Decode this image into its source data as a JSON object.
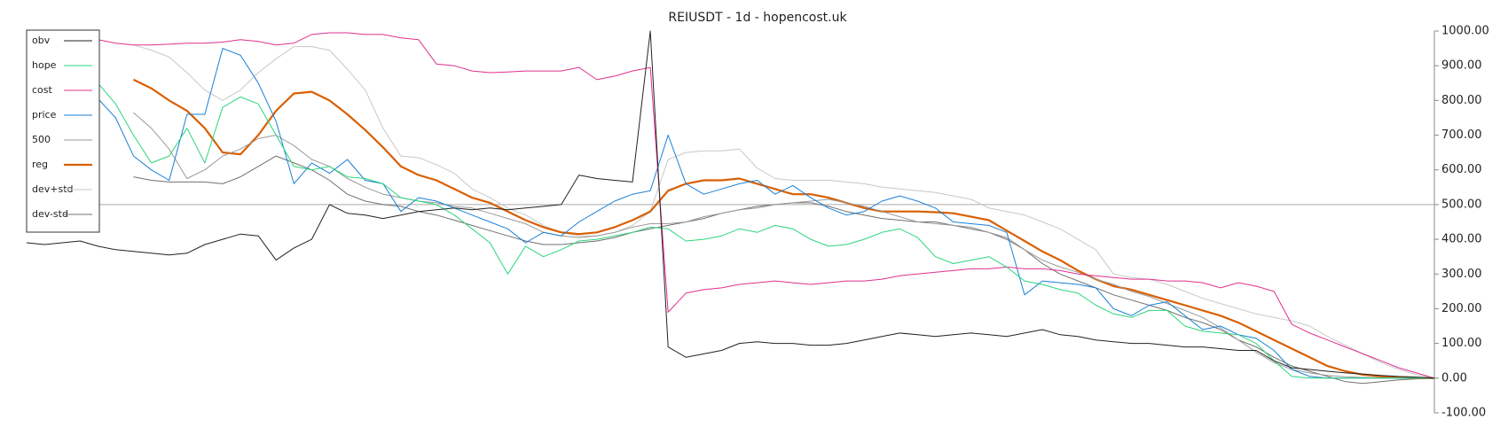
{
  "chart_data": {
    "type": "line",
    "title": "REIUSDT - 1d - hopencost.uk",
    "ylim": [
      -100,
      1000
    ],
    "yticks": [
      {
        "value": 1000,
        "label": "1000.00"
      },
      {
        "value": 900,
        "label": "900.00"
      },
      {
        "value": 800,
        "label": "800.00"
      },
      {
        "value": 700,
        "label": "700.00"
      },
      {
        "value": 600,
        "label": "600.00"
      },
      {
        "value": 500,
        "label": "500.00"
      },
      {
        "value": 400,
        "label": "400.00"
      },
      {
        "value": 300,
        "label": "300.00"
      },
      {
        "value": 200,
        "label": "200.00"
      },
      {
        "value": 100,
        "label": "100.00"
      },
      {
        "value": 0,
        "label": "0.00"
      },
      {
        "value": -100,
        "label": "-100.00"
      }
    ],
    "y_axis_side": "right",
    "reference_line": 500,
    "legend": "upper left",
    "series": [
      {
        "name": "obv",
        "color": "#222222",
        "width": 1,
        "values": [
          390,
          385,
          390,
          395,
          380,
          370,
          365,
          360,
          355,
          360,
          385,
          400,
          415,
          410,
          340,
          375,
          400,
          500,
          475,
          470,
          460,
          470,
          480,
          485,
          490,
          485,
          490,
          485,
          490,
          495,
          500,
          585,
          575,
          570,
          565,
          1000,
          90,
          60,
          70,
          80,
          100,
          105,
          100,
          100,
          95,
          95,
          100,
          110,
          120,
          130,
          125,
          120,
          125,
          130,
          125,
          120,
          130,
          140,
          125,
          120,
          110,
          105,
          100,
          100,
          95,
          90,
          90,
          85,
          80,
          80,
          50,
          30,
          25,
          20,
          15,
          12,
          8,
          5,
          3,
          0
        ]
      },
      {
        "name": "hope",
        "color": "#2bd67b",
        "width": 1,
        "values": [
          null,
          null,
          null,
          null,
          850,
          790,
          700,
          620,
          640,
          720,
          620,
          780,
          810,
          790,
          700,
          610,
          600,
          610,
          580,
          575,
          560,
          520,
          510,
          500,
          470,
          430,
          390,
          300,
          380,
          350,
          370,
          395,
          400,
          410,
          420,
          435,
          430,
          395,
          400,
          410,
          430,
          420,
          440,
          430,
          400,
          380,
          385,
          400,
          420,
          430,
          405,
          350,
          330,
          340,
          350,
          320,
          280,
          270,
          255,
          245,
          210,
          185,
          175,
          195,
          195,
          150,
          135,
          130,
          125,
          100,
          50,
          5,
          0,
          0,
          0,
          0,
          0,
          0,
          0,
          0
        ]
      },
      {
        "name": "cost",
        "color": "#e0308f",
        "width": 1,
        "values": [
          null,
          null,
          null,
          null,
          975,
          965,
          960,
          960,
          962,
          965,
          965,
          968,
          975,
          970,
          960,
          965,
          990,
          995,
          995,
          990,
          990,
          980,
          975,
          905,
          900,
          885,
          880,
          882,
          885,
          885,
          885,
          895,
          860,
          870,
          885,
          895,
          190,
          245,
          255,
          260,
          270,
          275,
          280,
          275,
          270,
          275,
          280,
          280,
          285,
          295,
          300,
          305,
          310,
          315,
          315,
          320,
          315,
          315,
          310,
          300,
          295,
          290,
          285,
          285,
          280,
          280,
          275,
          260,
          275,
          265,
          250,
          155,
          130,
          110,
          90,
          70,
          50,
          30,
          15,
          0
        ]
      },
      {
        "name": "price",
        "color": "#1a7fd6",
        "width": 1,
        "values": [
          null,
          null,
          null,
          null,
          805,
          750,
          640,
          600,
          570,
          760,
          760,
          950,
          930,
          850,
          740,
          560,
          620,
          590,
          630,
          570,
          560,
          480,
          520,
          510,
          490,
          470,
          450,
          430,
          390,
          420,
          410,
          450,
          480,
          510,
          530,
          540,
          700,
          560,
          530,
          545,
          560,
          570,
          530,
          555,
          520,
          490,
          470,
          480,
          510,
          525,
          510,
          490,
          450,
          445,
          440,
          420,
          240,
          280,
          275,
          270,
          260,
          200,
          180,
          210,
          220,
          180,
          140,
          150,
          125,
          115,
          80,
          25,
          5,
          0,
          0,
          0,
          0,
          0,
          0,
          0
        ]
      },
      {
        "name": "500",
        "color": "#9a9a9a",
        "width": 1,
        "values": [
          null,
          null,
          null,
          null,
          null,
          null,
          765,
          720,
          660,
          575,
          600,
          640,
          660,
          690,
          700,
          670,
          630,
          610,
          575,
          550,
          530,
          520,
          510,
          505,
          495,
          490,
          475,
          460,
          445,
          420,
          410,
          405,
          410,
          420,
          435,
          445,
          445,
          450,
          465,
          475,
          485,
          490,
          500,
          505,
          510,
          515,
          505,
          495,
          480,
          465,
          450,
          445,
          440,
          435,
          420,
          405,
          370,
          340,
          320,
          305,
          285,
          270,
          250,
          235,
          215,
          195,
          175,
          145,
          110,
          75,
          45,
          25,
          15,
          8,
          4,
          2,
          1,
          0,
          0,
          0
        ]
      },
      {
        "name": "reg",
        "color": "#d95f02",
        "width": 2.2,
        "values": [
          null,
          null,
          null,
          null,
          null,
          null,
          860,
          835,
          800,
          770,
          720,
          650,
          645,
          700,
          770,
          820,
          825,
          800,
          760,
          715,
          665,
          610,
          585,
          570,
          545,
          520,
          505,
          480,
          455,
          435,
          420,
          415,
          420,
          435,
          455,
          480,
          540,
          560,
          570,
          570,
          575,
          560,
          545,
          530,
          530,
          520,
          505,
          490,
          480,
          480,
          480,
          478,
          475,
          465,
          455,
          425,
          395,
          365,
          340,
          310,
          285,
          265,
          255,
          240,
          225,
          210,
          195,
          180,
          160,
          135,
          110,
          85,
          60,
          35,
          20,
          10,
          5,
          2,
          0,
          0
        ]
      },
      {
        "name": "dev+std",
        "color": "#c8c8c8",
        "width": 1,
        "values": [
          null,
          null,
          null,
          null,
          null,
          null,
          960,
          945,
          925,
          880,
          830,
          800,
          830,
          880,
          920,
          955,
          955,
          945,
          890,
          830,
          720,
          640,
          635,
          615,
          590,
          545,
          520,
          490,
          470,
          440,
          420,
          410,
          410,
          420,
          440,
          480,
          630,
          650,
          655,
          655,
          660,
          605,
          575,
          570,
          570,
          570,
          565,
          560,
          550,
          545,
          540,
          535,
          525,
          515,
          490,
          480,
          470,
          450,
          430,
          400,
          370,
          300,
          290,
          285,
          270,
          250,
          230,
          215,
          200,
          185,
          175,
          165,
          150,
          120,
          95,
          70,
          45,
          25,
          10,
          0
        ]
      },
      {
        "name": "dev-std",
        "color": "#707070",
        "width": 1,
        "values": [
          null,
          null,
          null,
          null,
          null,
          null,
          580,
          570,
          565,
          565,
          565,
          560,
          580,
          610,
          640,
          620,
          600,
          570,
          530,
          510,
          500,
          495,
          480,
          470,
          455,
          440,
          425,
          410,
          395,
          385,
          385,
          390,
          395,
          405,
          420,
          430,
          440,
          450,
          460,
          475,
          485,
          495,
          500,
          505,
          505,
          495,
          480,
          470,
          460,
          455,
          450,
          450,
          440,
          430,
          420,
          400,
          370,
          330,
          300,
          280,
          260,
          240,
          225,
          210,
          195,
          175,
          160,
          140,
          110,
          90,
          60,
          35,
          20,
          5,
          -10,
          -15,
          -10,
          -5,
          -2,
          0
        ]
      }
    ]
  }
}
